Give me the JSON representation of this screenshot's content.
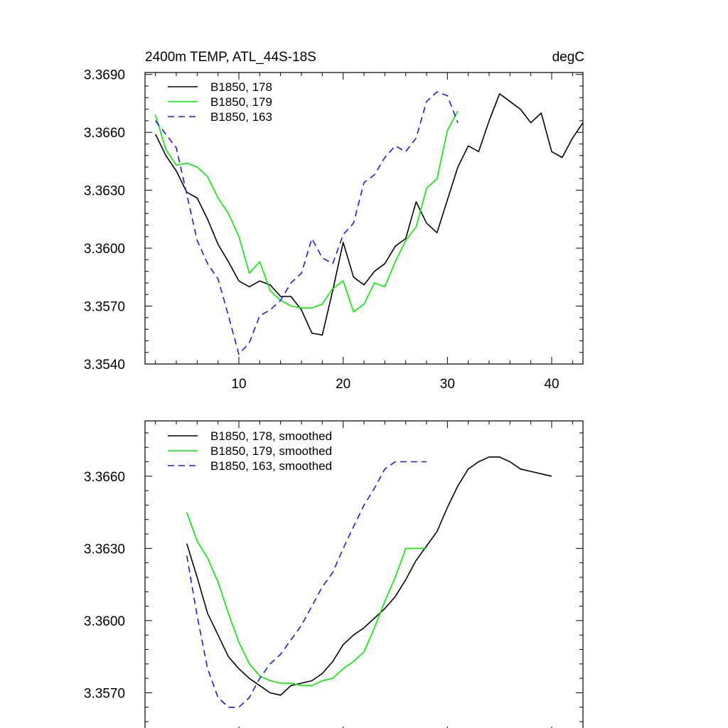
{
  "colors": {
    "s178": "#000000",
    "s179": "#00ee00",
    "s163": "#1a1ae6"
  },
  "chart_data": [
    {
      "type": "line",
      "title_left": "2400m TEMP, ATL_44S-18S",
      "title_right": "degC",
      "xlim": [
        1,
        43
      ],
      "ylim": [
        3.354,
        3.3691
      ],
      "xticks": [
        10,
        20,
        30,
        40
      ],
      "xtick_labels": [
        "10",
        "20",
        "30",
        "40"
      ],
      "yticks": [
        3.354,
        3.357,
        3.36,
        3.363,
        3.366,
        3.369
      ],
      "ytick_labels": [
        "3.3540",
        "3.3570",
        "3.3600",
        "3.3630",
        "3.3660",
        "3.3690"
      ],
      "series": [
        {
          "name": "B1850, 178",
          "color": "#000000",
          "dash": false,
          "x": [
            2,
            3,
            4,
            5,
            6,
            7,
            8,
            9,
            10,
            11,
            12,
            13,
            14,
            15,
            16,
            17,
            18,
            19,
            20,
            21,
            22,
            23,
            24,
            25,
            26,
            27,
            28,
            29,
            30,
            31,
            32,
            33,
            34,
            35,
            36,
            37,
            38,
            39,
            40,
            41,
            42,
            43
          ],
          "y": [
            3.3659,
            3.3648,
            3.364,
            3.3629,
            3.3626,
            3.3615,
            3.3602,
            3.3593,
            3.3583,
            3.358,
            3.3583,
            3.3581,
            3.3575,
            3.3575,
            3.3568,
            3.3556,
            3.3555,
            3.3578,
            3.3603,
            3.3585,
            3.3581,
            3.3588,
            3.3592,
            3.3601,
            3.3605,
            3.3624,
            3.3613,
            3.3608,
            3.3625,
            3.3642,
            3.3653,
            3.365,
            3.3666,
            3.368,
            3.3676,
            3.3672,
            3.3665,
            3.367,
            3.365,
            3.3647,
            3.3657,
            3.3665
          ]
        },
        {
          "name": "B1850, 179",
          "color": "#00ee00",
          "dash": false,
          "x": [
            2,
            3,
            4,
            5,
            6,
            7,
            8,
            9,
            10,
            11,
            12,
            13,
            14,
            15,
            16,
            17,
            18,
            19,
            20,
            21,
            22,
            23,
            24,
            25,
            26,
            27,
            28,
            29,
            30,
            31
          ],
          "y": [
            3.3669,
            3.3651,
            3.3643,
            3.3644,
            3.3642,
            3.3637,
            3.3626,
            3.3618,
            3.3606,
            3.3587,
            3.3593,
            3.3578,
            3.3573,
            3.357,
            3.3569,
            3.3569,
            3.3571,
            3.3579,
            3.3583,
            3.3567,
            3.3571,
            3.3582,
            3.358,
            3.3593,
            3.3604,
            3.3611,
            3.3631,
            3.3636,
            3.3661,
            3.3671
          ]
        },
        {
          "name": "B1850, 163",
          "color": "#1a1ae6",
          "dash": true,
          "x": [
            2,
            3,
            4,
            5,
            6,
            7,
            8,
            9,
            10,
            11,
            12,
            13,
            14,
            15,
            16,
            17,
            18,
            19,
            20,
            21,
            22,
            23,
            24,
            25,
            26,
            27,
            28,
            29,
            30,
            31
          ],
          "y": [
            3.3666,
            3.3659,
            3.3652,
            3.3628,
            3.3604,
            3.3592,
            3.3584,
            3.3565,
            3.3545,
            3.3551,
            3.3565,
            3.3568,
            3.3573,
            3.3582,
            3.3587,
            3.3605,
            3.3595,
            3.3592,
            3.3607,
            3.3613,
            3.3634,
            3.3638,
            3.3647,
            3.3653,
            3.365,
            3.3657,
            3.3676,
            3.3681,
            3.3679,
            3.3665
          ]
        }
      ]
    },
    {
      "type": "line",
      "xlim": [
        1,
        43
      ],
      "ylim": [
        3.3553,
        3.3683
      ],
      "xticks": [
        10,
        20,
        30,
        40
      ],
      "yticks": [
        3.357,
        3.36,
        3.363,
        3.366
      ],
      "ytick_labels": [
        "3.3570",
        "3.3600",
        "3.3630",
        "3.3660"
      ],
      "series": [
        {
          "name": "B1850, 178, smoothed",
          "color": "#000000",
          "dash": false,
          "x": [
            5,
            6,
            7,
            8,
            9,
            10,
            11,
            12,
            13,
            14,
            15,
            16,
            17,
            18,
            19,
            20,
            21,
            22,
            23,
            24,
            25,
            26,
            27,
            28,
            29,
            30,
            31,
            32,
            33,
            34,
            35,
            36,
            37,
            38,
            39,
            40
          ],
          "y": [
            3.3632,
            3.3618,
            3.3603,
            3.3594,
            3.3585,
            3.358,
            3.3576,
            3.3573,
            3.357,
            3.3569,
            3.3573,
            3.3574,
            3.3575,
            3.3578,
            3.3583,
            3.359,
            3.3594,
            3.3597,
            3.3601,
            3.3605,
            3.361,
            3.3617,
            3.3625,
            3.3631,
            3.3637,
            3.3647,
            3.3656,
            3.3663,
            3.3666,
            3.3668,
            3.3668,
            3.3666,
            3.3663,
            3.3662,
            3.3661,
            3.366
          ]
        },
        {
          "name": "B1850, 179, smoothed",
          "color": "#00ee00",
          "dash": false,
          "x": [
            5,
            6,
            7,
            8,
            9,
            10,
            11,
            12,
            13,
            14,
            15,
            16,
            17,
            18,
            19,
            20,
            21,
            22,
            23,
            24,
            25,
            26,
            27,
            28
          ],
          "y": [
            3.3645,
            3.3633,
            3.3626,
            3.3616,
            3.3603,
            3.3591,
            3.3582,
            3.3577,
            3.3575,
            3.3574,
            3.3574,
            3.3573,
            3.3573,
            3.3575,
            3.3576,
            3.358,
            3.3583,
            3.3587,
            3.3597,
            3.3608,
            3.3618,
            3.363,
            3.363,
            3.363
          ]
        },
        {
          "name": "B1850, 163, smoothed",
          "color": "#1a1ae6",
          "dash": true,
          "x": [
            5,
            6,
            7,
            8,
            9,
            10,
            11,
            12,
            13,
            14,
            15,
            16,
            17,
            18,
            19,
            20,
            21,
            22,
            23,
            24,
            25,
            26,
            27,
            28
          ],
          "y": [
            3.3627,
            3.3602,
            3.358,
            3.3568,
            3.3564,
            3.3564,
            3.3568,
            3.3576,
            3.3582,
            3.3586,
            3.3592,
            3.3598,
            3.3606,
            3.3614,
            3.362,
            3.363,
            3.3639,
            3.3648,
            3.3655,
            3.3663,
            3.3666,
            3.3666,
            3.3666,
            3.3666
          ]
        }
      ]
    }
  ]
}
